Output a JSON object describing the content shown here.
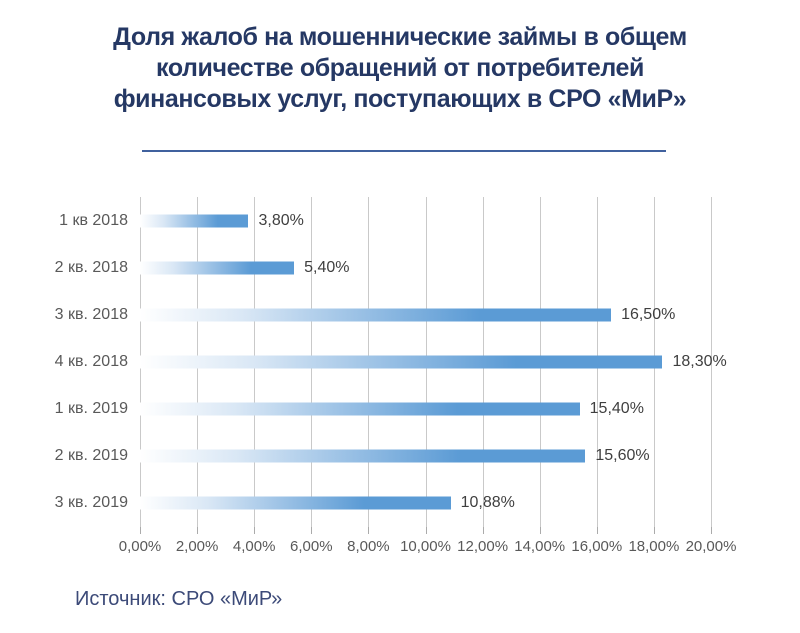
{
  "title": {
    "lines": [
      "Доля жалоб на мошеннические займы в общем",
      "количестве обращений от потребителей",
      "финансовых услуг, поступающих в СРО «МиР»"
    ],
    "color": "#253864"
  },
  "source": {
    "text": "Источник: СРО «МиР»",
    "color": "#3C4A78"
  },
  "chart_data": {
    "type": "bar",
    "orientation": "horizontal",
    "title": "Доля жалоб на мошеннические займы в общем количестве обращений от потребителей финансовых услуг, поступающих в СРО «МиР»",
    "categories": [
      "1 кв 2018",
      "2 кв. 2018",
      "3 кв. 2018",
      "4 кв. 2018",
      "1 кв. 2019",
      "2 кв. 2019",
      "3 кв. 2019"
    ],
    "values": [
      3.8,
      5.4,
      16.5,
      18.3,
      15.4,
      15.6,
      10.88
    ],
    "value_labels": [
      "3,80%",
      "5,40%",
      "16,50%",
      "18,30%",
      "15,40%",
      "15,60%",
      "10,88%"
    ],
    "x_tick_labels": [
      "0,00%",
      "2,00%",
      "4,00%",
      "6,00%",
      "8,00%",
      "10,00%",
      "12,00%",
      "14,00%",
      "16,00%",
      "18,00%",
      "20,00%"
    ],
    "xlim": [
      0,
      20
    ],
    "grid": true,
    "legend": false,
    "bar_color": "#5B9BD5",
    "bar_gradient_start": "#FFFFFF",
    "gridline_color": "#C9C9C9",
    "axis_label_color": "#595959",
    "category_label_color": "#595959",
    "value_label_color": "#3F3F3F"
  }
}
